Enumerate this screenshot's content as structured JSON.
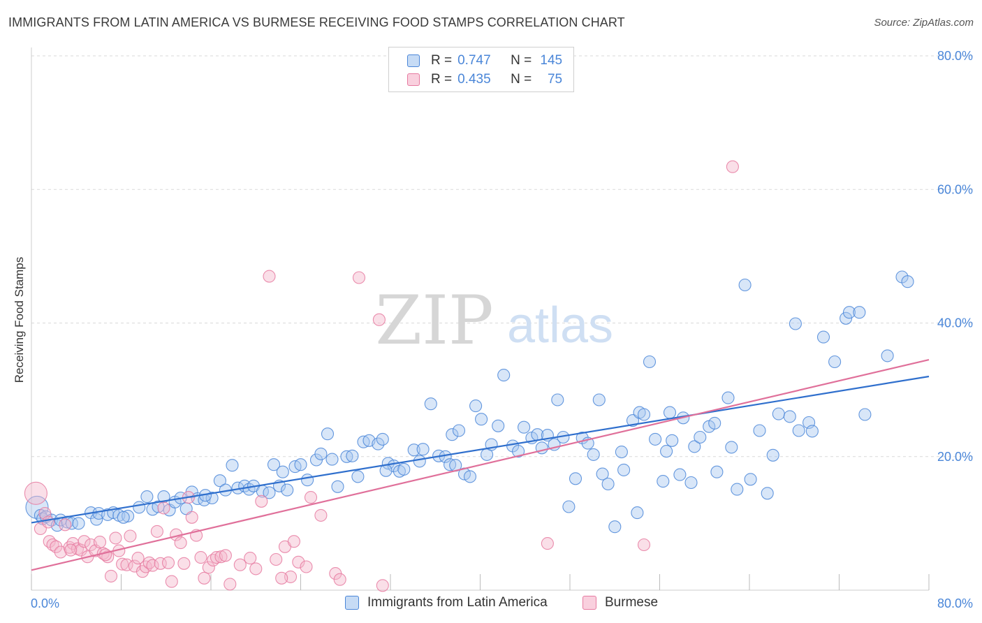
{
  "header": {
    "title": "IMMIGRANTS FROM LATIN AMERICA VS BURMESE RECEIVING FOOD STAMPS CORRELATION CHART",
    "source": "Source: ZipAtlas.com"
  },
  "watermark": {
    "zip": "ZIP",
    "atlas": "atlas"
  },
  "legend": {
    "rows": [
      {
        "r_label": "R =",
        "r_value": "0.747",
        "n_label": "N =",
        "n_value": "145"
      },
      {
        "r_label": "R =",
        "r_value": "0.435",
        "n_label": "N =",
        "n_value": "75"
      }
    ]
  },
  "colors": {
    "blue": "#4a86d8",
    "blue_fill": "#a9c8f0",
    "blue_line": "#2f6fcd",
    "pink": "#e67aa0",
    "pink_fill": "#f5b8cc",
    "pink_line": "#e0709a",
    "tick_text": "#4a86d8",
    "grid": "#d9d9d9"
  },
  "chart_data": {
    "type": "scatter",
    "title": "IMMIGRANTS FROM LATIN AMERICA VS BURMESE RECEIVING FOOD STAMPS CORRELATION CHART",
    "xlabel": "",
    "ylabel": "Receiving Food Stamps",
    "xlim": [
      0,
      80
    ],
    "ylim": [
      0,
      80
    ],
    "x_tick_labels": [
      "0.0%",
      "80.0%"
    ],
    "y_tick_labels": [
      "20.0%",
      "40.0%",
      "60.0%",
      "80.0%"
    ],
    "y_ticks": [
      20,
      40,
      60,
      80
    ],
    "grid": true,
    "legend_position": "top-center",
    "series": [
      {
        "name": "Immigrants from Latin America",
        "color": "#4a86d8",
        "r": 0.747,
        "n": 145,
        "trend": {
          "x": [
            0,
            80
          ],
          "y": [
            10.1,
            32.0
          ]
        },
        "points": [
          [
            0.5,
            12.4
          ],
          [
            0.8,
            11.2
          ],
          [
            1.0,
            10.7
          ],
          [
            1.3,
            11.0
          ],
          [
            1.8,
            10.5
          ],
          [
            2.3,
            9.7
          ],
          [
            2.6,
            10.5
          ],
          [
            3.2,
            10.2
          ],
          [
            3.6,
            10.0
          ],
          [
            4.2,
            10.0
          ],
          [
            5.3,
            11.6
          ],
          [
            5.8,
            10.6
          ],
          [
            6.0,
            11.5
          ],
          [
            6.8,
            11.3
          ],
          [
            7.3,
            11.6
          ],
          [
            7.8,
            11.2
          ],
          [
            8.6,
            11.1
          ],
          [
            8.2,
            10.9
          ],
          [
            9.6,
            12.4
          ],
          [
            10.3,
            14.0
          ],
          [
            10.8,
            12.1
          ],
          [
            11.3,
            12.5
          ],
          [
            11.8,
            14.0
          ],
          [
            12.3,
            12.0
          ],
          [
            12.8,
            13.2
          ],
          [
            13.3,
            13.8
          ],
          [
            13.8,
            12.2
          ],
          [
            14.3,
            14.7
          ],
          [
            14.8,
            13.7
          ],
          [
            15.4,
            13.5
          ],
          [
            16.1,
            13.8
          ],
          [
            16.8,
            16.4
          ],
          [
            17.3,
            15.0
          ],
          [
            17.9,
            18.7
          ],
          [
            18.4,
            15.3
          ],
          [
            19.0,
            15.6
          ],
          [
            19.4,
            15.1
          ],
          [
            19.8,
            15.6
          ],
          [
            20.6,
            14.8
          ],
          [
            21.2,
            14.6
          ],
          [
            21.6,
            18.8
          ],
          [
            22.1,
            15.6
          ],
          [
            22.8,
            15.0
          ],
          [
            23.5,
            18.5
          ],
          [
            24.0,
            18.8
          ],
          [
            24.6,
            16.5
          ],
          [
            25.4,
            19.5
          ],
          [
            25.8,
            20.4
          ],
          [
            26.4,
            23.4
          ],
          [
            26.8,
            19.6
          ],
          [
            27.3,
            15.5
          ],
          [
            28.1,
            20.0
          ],
          [
            28.6,
            20.1
          ],
          [
            29.1,
            17.0
          ],
          [
            29.6,
            22.2
          ],
          [
            30.1,
            22.4
          ],
          [
            30.9,
            21.9
          ],
          [
            31.3,
            22.6
          ],
          [
            31.8,
            19.0
          ],
          [
            32.3,
            18.6
          ],
          [
            32.8,
            17.8
          ],
          [
            33.2,
            18.1
          ],
          [
            34.1,
            21.0
          ],
          [
            34.6,
            19.3
          ],
          [
            34.9,
            21.1
          ],
          [
            35.6,
            27.9
          ],
          [
            36.3,
            20.1
          ],
          [
            36.9,
            20.0
          ],
          [
            37.3,
            18.8
          ],
          [
            37.8,
            18.7
          ],
          [
            37.5,
            23.3
          ],
          [
            38.1,
            23.9
          ],
          [
            38.6,
            17.4
          ],
          [
            39.1,
            17.0
          ],
          [
            39.6,
            27.6
          ],
          [
            40.1,
            25.6
          ],
          [
            40.6,
            20.3
          ],
          [
            41.0,
            21.8
          ],
          [
            41.6,
            24.6
          ],
          [
            42.1,
            32.2
          ],
          [
            42.9,
            21.6
          ],
          [
            43.4,
            20.8
          ],
          [
            43.9,
            24.4
          ],
          [
            44.6,
            22.8
          ],
          [
            45.1,
            23.3
          ],
          [
            45.5,
            21.3
          ],
          [
            46.0,
            23.2
          ],
          [
            46.6,
            21.8
          ],
          [
            46.9,
            28.5
          ],
          [
            47.4,
            22.9
          ],
          [
            47.9,
            12.5
          ],
          [
            48.5,
            16.7
          ],
          [
            49.1,
            22.8
          ],
          [
            49.6,
            22.0
          ],
          [
            50.1,
            20.3
          ],
          [
            50.6,
            28.5
          ],
          [
            50.9,
            17.4
          ],
          [
            51.4,
            15.9
          ],
          [
            52.0,
            9.5
          ],
          [
            52.6,
            20.7
          ],
          [
            52.8,
            18.0
          ],
          [
            53.6,
            25.4
          ],
          [
            54.0,
            11.6
          ],
          [
            54.2,
            26.6
          ],
          [
            54.6,
            26.3
          ],
          [
            55.1,
            34.2
          ],
          [
            55.6,
            22.6
          ],
          [
            56.3,
            16.3
          ],
          [
            56.6,
            20.8
          ],
          [
            57.1,
            22.4
          ],
          [
            57.8,
            17.3
          ],
          [
            58.1,
            25.8
          ],
          [
            58.8,
            16.1
          ],
          [
            59.1,
            21.5
          ],
          [
            59.6,
            22.9
          ],
          [
            60.4,
            24.5
          ],
          [
            60.9,
            25.0
          ],
          [
            61.1,
            17.7
          ],
          [
            62.1,
            28.8
          ],
          [
            62.4,
            21.4
          ],
          [
            62.9,
            15.1
          ],
          [
            63.6,
            45.7
          ],
          [
            64.1,
            16.6
          ],
          [
            64.9,
            23.9
          ],
          [
            65.6,
            14.5
          ],
          [
            66.1,
            20.2
          ],
          [
            66.6,
            26.4
          ],
          [
            67.6,
            26.0
          ],
          [
            68.1,
            39.9
          ],
          [
            68.4,
            23.9
          ],
          [
            69.3,
            25.1
          ],
          [
            69.6,
            23.8
          ],
          [
            70.6,
            37.9
          ],
          [
            71.6,
            34.2
          ],
          [
            72.6,
            40.7
          ],
          [
            72.9,
            41.6
          ],
          [
            73.8,
            41.6
          ],
          [
            74.3,
            26.3
          ],
          [
            76.3,
            35.1
          ],
          [
            77.6,
            46.9
          ],
          [
            78.1,
            46.2
          ],
          [
            56.9,
            26.6
          ],
          [
            31.6,
            17.9
          ],
          [
            22.4,
            17.7
          ],
          [
            15.5,
            14.2
          ]
        ],
        "large_point": [
          0.5,
          12.4
        ]
      },
      {
        "name": "Burmese",
        "color": "#e67aa0",
        "r": 0.435,
        "n": 75,
        "trend": {
          "x": [
            0,
            80
          ],
          "y": [
            3.0,
            34.5
          ]
        },
        "points": [
          [
            0.4,
            14.5
          ],
          [
            0.8,
            9.2
          ],
          [
            1.2,
            11.5
          ],
          [
            1.6,
            7.3
          ],
          [
            1.9,
            6.8
          ],
          [
            2.2,
            6.5
          ],
          [
            2.6,
            5.7
          ],
          [
            3.0,
            9.8
          ],
          [
            3.4,
            6.4
          ],
          [
            3.7,
            7.0
          ],
          [
            4.1,
            6.2
          ],
          [
            4.4,
            6.0
          ],
          [
            4.7,
            7.3
          ],
          [
            5.0,
            5.0
          ],
          [
            5.3,
            6.8
          ],
          [
            5.7,
            5.9
          ],
          [
            6.1,
            7.2
          ],
          [
            6.4,
            5.5
          ],
          [
            6.8,
            5.0
          ],
          [
            7.1,
            2.1
          ],
          [
            7.5,
            7.8
          ],
          [
            7.8,
            5.9
          ],
          [
            8.1,
            3.9
          ],
          [
            8.5,
            3.8
          ],
          [
            8.8,
            8.1
          ],
          [
            9.2,
            3.6
          ],
          [
            9.5,
            4.8
          ],
          [
            9.9,
            2.8
          ],
          [
            10.2,
            3.5
          ],
          [
            10.5,
            4.1
          ],
          [
            10.8,
            3.7
          ],
          [
            11.2,
            8.8
          ],
          [
            11.5,
            4.0
          ],
          [
            11.8,
            12.3
          ],
          [
            12.2,
            4.1
          ],
          [
            12.5,
            1.3
          ],
          [
            12.9,
            8.3
          ],
          [
            13.3,
            7.1
          ],
          [
            13.6,
            4.0
          ],
          [
            14.0,
            13.9
          ],
          [
            14.3,
            10.9
          ],
          [
            14.7,
            8.2
          ],
          [
            15.1,
            4.9
          ],
          [
            15.4,
            1.8
          ],
          [
            15.8,
            3.4
          ],
          [
            16.2,
            4.5
          ],
          [
            16.5,
            4.9
          ],
          [
            16.9,
            5.0
          ],
          [
            17.3,
            5.2
          ],
          [
            17.7,
            0.9
          ],
          [
            20.0,
            3.2
          ],
          [
            20.5,
            13.3
          ],
          [
            21.8,
            4.6
          ],
          [
            22.6,
            6.5
          ],
          [
            23.1,
            2.0
          ],
          [
            23.4,
            7.3
          ],
          [
            23.8,
            4.2
          ],
          [
            24.5,
            3.5
          ],
          [
            25.8,
            11.2
          ],
          [
            27.1,
            2.5
          ],
          [
            27.5,
            1.6
          ],
          [
            31.3,
            0.7
          ],
          [
            18.6,
            3.8
          ],
          [
            19.5,
            4.8
          ],
          [
            22.3,
            1.8
          ],
          [
            21.2,
            47.0
          ],
          [
            29.2,
            46.8
          ],
          [
            31.0,
            40.5
          ],
          [
            46.0,
            7.0
          ],
          [
            54.6,
            6.8
          ],
          [
            62.5,
            63.4
          ],
          [
            24.9,
            13.9
          ],
          [
            6.6,
            5.3
          ],
          [
            3.5,
            6.0
          ],
          [
            1.5,
            10.2
          ]
        ],
        "large_point": [
          0.4,
          14.5
        ]
      }
    ]
  },
  "bottom_legend": {
    "items": [
      {
        "label": "Immigrants from Latin America"
      },
      {
        "label": "Burmese"
      }
    ]
  }
}
